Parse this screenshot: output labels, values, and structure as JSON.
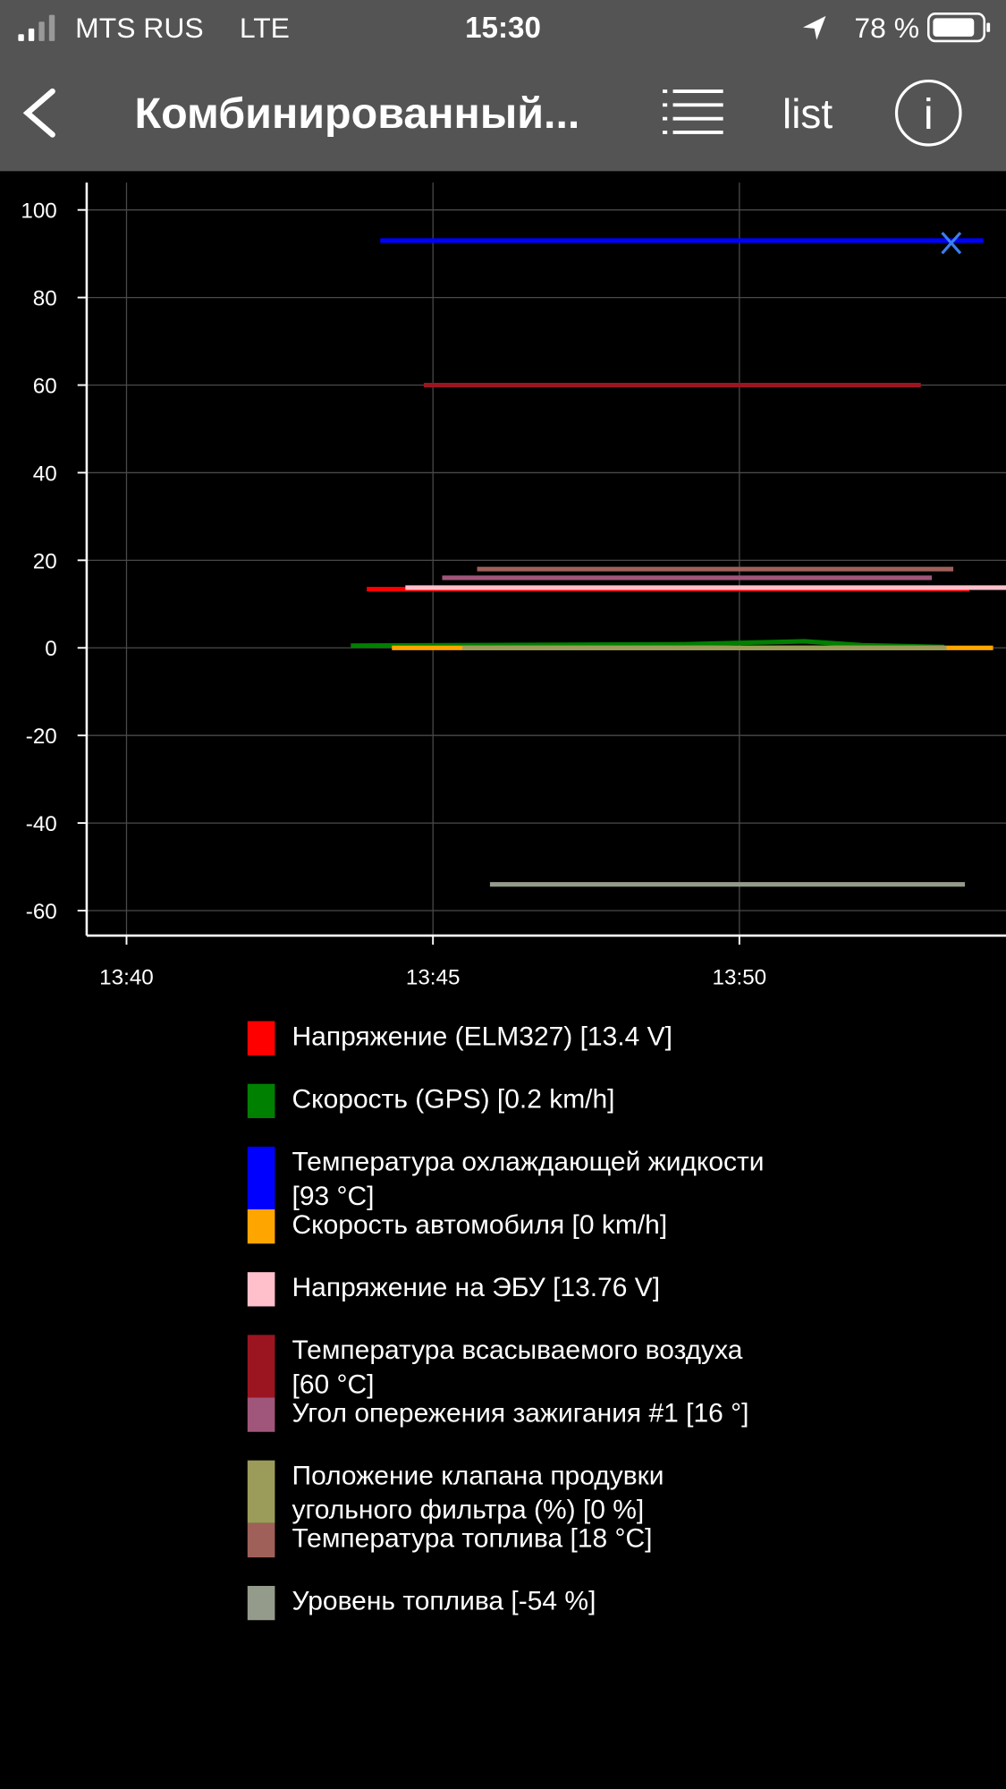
{
  "status_bar": {
    "carrier": "MTS RUS",
    "network": "LTE",
    "time": "15:30",
    "battery": "78 %"
  },
  "nav_bar": {
    "title": "Комбинированный...",
    "list_label": "list",
    "info_label": "i"
  },
  "chart_data": {
    "type": "line",
    "xlim": [
      819.35,
      834.35
    ],
    "xticks": [
      {
        "value": 820,
        "label": "13:40"
      },
      {
        "value": 825,
        "label": "13:45"
      },
      {
        "value": 830,
        "label": "13:50"
      }
    ],
    "ylim": [
      -65.7,
      106.25
    ],
    "yticks": [
      100,
      80,
      60,
      40,
      20,
      0,
      -20,
      -40,
      -60
    ],
    "grid": true,
    "series": [
      {
        "name": "Напряжение (ELM327) [13.4 V]",
        "color": "#ff0000",
        "x": [
          823.92,
          833.75
        ],
        "values": [
          13.4,
          13.4
        ]
      },
      {
        "name": "Скорость (GPS) [0.2 km/h]",
        "color": "#008000",
        "x": [
          823.66,
          829,
          831.06,
          832,
          833.34
        ],
        "values": [
          0.5,
          0.8,
          1.5,
          0.6,
          0.2
        ]
      },
      {
        "name": "Температура охлаждающей жидкости [93 °C]",
        "color": "#0000ff",
        "x": [
          824.14,
          833.98
        ],
        "values": [
          93,
          93
        ]
      },
      {
        "name": "Скорость автомобиля [0 km/h]",
        "color": "#ffa500",
        "x": [
          824.33,
          834.14
        ],
        "values": [
          0,
          0
        ]
      },
      {
        "name": "Напряжение на ЭБУ [13.76 V]",
        "color": "#ffc0cb",
        "x": [
          824.55,
          834.35
        ],
        "values": [
          13.76,
          13.76
        ]
      },
      {
        "name": "Температура всасываемого воздуха [60 °C]",
        "color": "#9b1520",
        "x": [
          824.85,
          832.96
        ],
        "values": [
          60,
          60
        ]
      },
      {
        "name": "Угол опережения зажигания #1 [16 °]",
        "color": "#a0567a",
        "x": [
          825.15,
          833.14
        ],
        "values": [
          16,
          16
        ]
      },
      {
        "name": "Положение клапана продувки угольного фильтра (%) [0 %]",
        "color": "#9c9c5a",
        "x": [
          825.48,
          833.38
        ],
        "values": [
          0,
          0
        ]
      },
      {
        "name": "Температура топлива [18 °C]",
        "color": "#a0605a",
        "x": [
          825.72,
          833.49
        ],
        "values": [
          18,
          18
        ]
      },
      {
        "name": "Уровень топлива [-54 %]",
        "color": "#949b8b",
        "x": [
          825.93,
          833.68
        ],
        "values": [
          -54,
          -54
        ]
      }
    ]
  }
}
